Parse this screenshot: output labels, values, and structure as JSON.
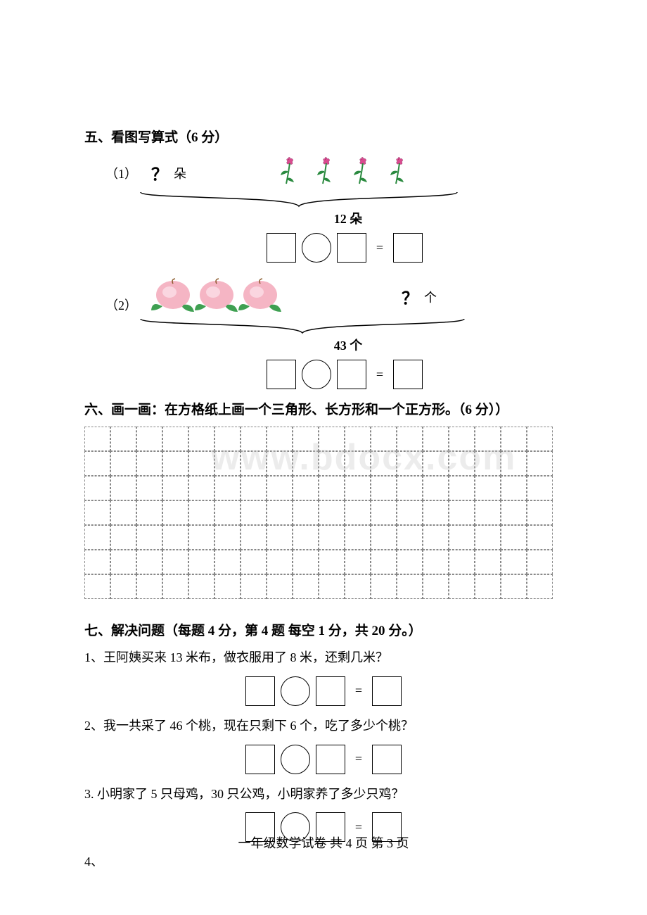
{
  "section5": {
    "title": "五、看图写算式（6 分）",
    "q1": {
      "label": "（1）",
      "unknown_text": "？",
      "unknown_unit": "朵",
      "flower_count": 4,
      "total_label": "12 朵",
      "brace_width": 470
    },
    "q2": {
      "label": "（2）",
      "peach_count": 3,
      "unknown_text": "？",
      "unknown_unit": "个",
      "total_label": "43 个",
      "brace_width": 480
    },
    "equals": "="
  },
  "section6": {
    "title": "六、画一画：在方格纸上画一个三角形、长方形和一个正方形。（6 分））",
    "grid_cols": 18,
    "grid_rows": 7
  },
  "section7": {
    "title": "七、解决问题（每题 4 分，第 4 题 每空 1 分，共  20  分。）",
    "q1": "1、王阿姨买来 13 米布，做衣服用了 8 米，还剩几米？",
    "q2": "2、我一共采了 46 个桃，现在只剩下 6 个，吃了多少个桃？",
    "q3": "3. 小明家了 5 只母鸡，30 只公鸡，小明家养了多少只鸡？",
    "q4": "4、",
    "equals": "="
  },
  "footer": {
    "text": "一年级数学试卷    共  4  页  第  3  页"
  },
  "watermark": "www.bdocx.com",
  "colors": {
    "text": "#000000",
    "background": "#ffffff",
    "grid_border": "#888888",
    "flower_pink": "#d94b8f",
    "flower_green": "#2a8a3f",
    "peach_pink": "#f5b5c4",
    "peach_leaf": "#3fa052"
  }
}
